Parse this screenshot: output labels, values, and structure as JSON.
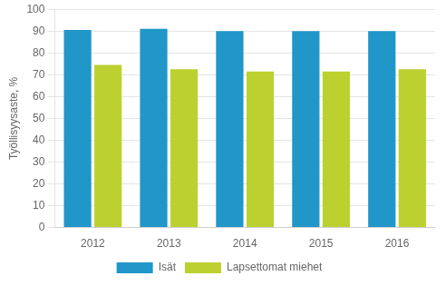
{
  "chart_data": {
    "type": "bar",
    "ylabel": "Työllisyysaste, %",
    "categories": [
      "2012",
      "2013",
      "2014",
      "2015",
      "2016"
    ],
    "series": [
      {
        "name": "Isät",
        "color": "#2196c8",
        "values": [
          90.5,
          91.0,
          90.0,
          90.0,
          90.0
        ]
      },
      {
        "name": "Lapsettomat miehet",
        "color": "#bcd130",
        "values": [
          74.5,
          72.5,
          71.5,
          71.5,
          72.5
        ]
      }
    ],
    "ylim": [
      0,
      100
    ],
    "yticks": [
      0,
      10,
      20,
      30,
      40,
      50,
      60,
      70,
      80,
      90,
      100
    ],
    "grid": true,
    "legend": "bottom"
  }
}
